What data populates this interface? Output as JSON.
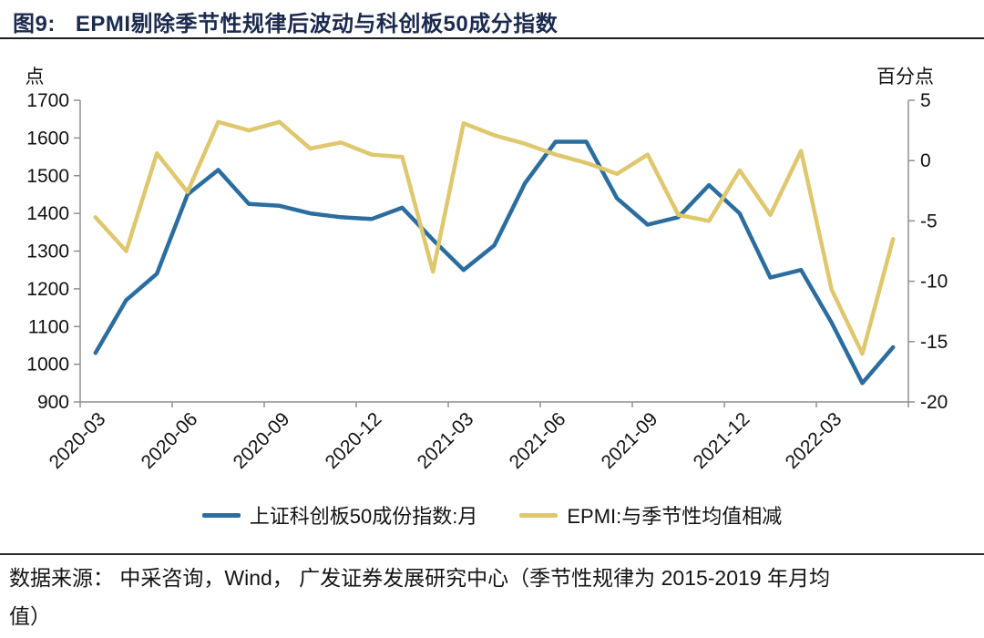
{
  "header": {
    "tag": "图9:",
    "title": "EPMI剔除季节性规律后波动与科创板50成分指数"
  },
  "chart_data": {
    "type": "line",
    "x": [
      "2020-03",
      "2020-04",
      "2020-05",
      "2020-06",
      "2020-07",
      "2020-08",
      "2020-09",
      "2020-10",
      "2020-11",
      "2020-12",
      "2021-01",
      "2021-02",
      "2021-03",
      "2021-04",
      "2021-05",
      "2021-06",
      "2021-07",
      "2021-08",
      "2021-09",
      "2021-10",
      "2021-11",
      "2021-12",
      "2022-01",
      "2022-02",
      "2022-03",
      "2022-04",
      "2022-05"
    ],
    "x_tick_labels": [
      "2020-03",
      "2020-06",
      "2020-09",
      "2020-12",
      "2021-03",
      "2021-06",
      "2021-09",
      "2021-12",
      "2022-03"
    ],
    "left_axis": {
      "unit": "点",
      "ticks": [
        1700,
        1600,
        1500,
        1400,
        1300,
        1200,
        1100,
        1000,
        900
      ],
      "range": [
        900,
        1700
      ]
    },
    "right_axis": {
      "unit": "百分点",
      "ticks": [
        5,
        0,
        -5,
        -10,
        -15,
        -20
      ],
      "range": [
        -20,
        5
      ]
    },
    "grid": false,
    "legend_position": "bottom",
    "series": [
      {
        "name": "上证科创板50成份指数:月",
        "axis": "left",
        "color": "#2B6D9F",
        "values": [
          1030,
          1170,
          1240,
          1450,
          1515,
          1425,
          1420,
          1400,
          1390,
          1385,
          1415,
          1330,
          1250,
          1315,
          1480,
          1590,
          1590,
          1440,
          1370,
          1390,
          1475,
          1400,
          1230,
          1250,
          1110,
          950,
          1045
        ]
      },
      {
        "name": "EPMI:与季节性均值相减",
        "axis": "right",
        "color": "#DFC76E",
        "values": [
          -4.7,
          -7.5,
          0.6,
          -2.6,
          3.2,
          2.5,
          3.2,
          1.0,
          1.5,
          0.5,
          0.3,
          -9.2,
          3.1,
          2.1,
          1.4,
          0.5,
          -0.2,
          -1.1,
          0.5,
          -4.5,
          -5.0,
          -0.8,
          -4.5,
          0.8,
          -10.7,
          -16.0,
          -6.5
        ]
      }
    ]
  },
  "footer": {
    "text": "数据来源： 中采咨询，Wind， 广发证券发展研究中心（季节性规律为 2015-2019 年月均\n值）"
  }
}
